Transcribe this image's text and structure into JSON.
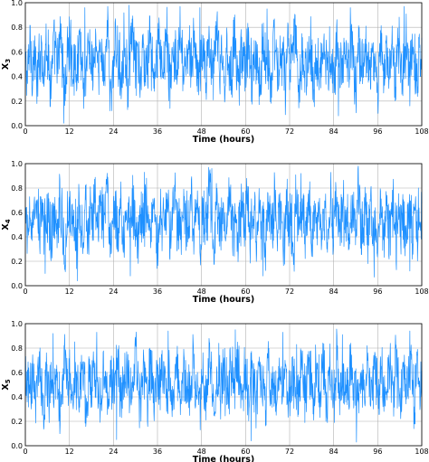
{
  "chart_data": [
    {
      "type": "line",
      "ylabel": "X",
      "ylabel_sub": "3",
      "xlabel": "Time (hours)",
      "xlim": [
        0,
        108
      ],
      "ylim": [
        0,
        1
      ],
      "xticks": [
        0,
        12,
        24,
        36,
        48,
        60,
        72,
        84,
        96,
        108
      ],
      "yticks": [
        "0.0",
        "0.2",
        "0.4",
        "0.6",
        "0.8",
        "1.0"
      ],
      "grid": true,
      "color": "#1e90ff",
      "series": [
        {
          "values": [
            0.52,
            0.38,
            0.71,
            0.45,
            0.6,
            0.29,
            0.55,
            0.66,
            0.41,
            0.73,
            0.48,
            0.35,
            0.62,
            0.57,
            0.44,
            0.8,
            0.5,
            0.27,
            0.59,
            0.68,
            0.46,
            0.53,
            0.39,
            0.74,
            0.58,
            0.31,
            0.49,
            0.63,
            0.55,
            0.42,
            0.7,
            0.36,
            0.61,
            0.47,
            0.54,
            0.82,
            0.44,
            0.3,
            0.57,
            0.65,
            0.5,
            0.4,
            0.69,
            0.52,
            0.34,
            0.6,
            0.72,
            0.45,
            0.56,
            0.28,
            0.63,
            0.51,
            0.43,
            0.77,
            0.48,
            0.37,
            0.58,
            0.66,
            0.53,
            0.41,
            0.85,
            0.47,
            0.32,
            0.6,
            0.55,
            0.44,
            0.71,
            0.5,
            0.38,
            0.64,
            0.57,
            0.42,
            0.79,
            0.49,
            0.33,
            0.62,
            0.56,
            0.45,
            0.68,
            0.52,
            0.36,
            0.59,
            0.73,
            0.46,
            0.54,
            0.3,
            0.65,
            0.51,
            0.4,
            0.76,
            0.48,
            0.35,
            0.61,
            0.57,
            0.43,
            0.7,
            0.53,
            0.39,
            0.63,
            0.49,
            0.27,
            0.58,
            0.67,
            0.45,
            0.55,
            0.34,
            0.72,
            0.5,
            0.42,
            0.62,
            0.56,
            0.31,
            0.69,
            0.47,
            0.53,
            0.81,
            0.44,
            0.37,
            0.6,
            0.52,
            0.41,
            0.66,
            0.58,
            0.29,
            0.64,
            0.5,
            0.46,
            0.75,
            0.54,
            0.36,
            0.59,
            0.48,
            0.43,
            0.7,
            0.55,
            0.32,
            0.63,
            0.51,
            0.4,
            0.78,
            0.47,
            0.35,
            0.61,
            0.57,
            0.44,
            0.67,
            0.53,
            0.38,
            0.62,
            0.49,
            0.28,
            0.6,
            0.71,
            0.45,
            0.56,
            0.33,
            0.68,
            0.52,
            0.41,
            0.74,
            0.48,
            0.37,
            0.65,
            0.55,
            0.43,
            0.58,
            0.5,
            0.3,
            0.63,
            0.54
          ],
          "spikes": [
            [
              0.097,
              0.02
            ],
            [
              0.15,
              0.96
            ],
            [
              0.213,
              0.12
            ],
            [
              0.262,
              0.98
            ],
            [
              0.44,
              0.96
            ],
            [
              0.61,
              0.95
            ],
            [
              0.79,
              0.08
            ],
            [
              0.82,
              0.96
            ],
            [
              0.89,
              0.1
            ],
            [
              0.955,
              0.97
            ]
          ]
        }
      ]
    },
    {
      "type": "line",
      "ylabel": "X",
      "ylabel_sub": "4",
      "xlabel": "Time (hours)",
      "xlim": [
        0,
        108
      ],
      "ylim": [
        0,
        1
      ],
      "xticks": [
        0,
        12,
        24,
        36,
        48,
        60,
        72,
        84,
        96,
        108
      ],
      "yticks": [
        "0.0",
        "0.2",
        "0.4",
        "0.6",
        "0.8",
        "1.0"
      ],
      "grid": true,
      "color": "#1e90ff",
      "series": [
        {
          "values": [
            0.5,
            0.42,
            0.68,
            0.36,
            0.57,
            0.63,
            0.45,
            0.74,
            0.39,
            0.55,
            0.6,
            0.33,
            0.66,
            0.48,
            0.52,
            0.79,
            0.41,
            0.29,
            0.58,
            0.7,
            0.46,
            0.54,
            0.37,
            0.72,
            0.51,
            0.44,
            0.65,
            0.35,
            0.59,
            0.49,
            0.76,
            0.4,
            0.56,
            0.62,
            0.43,
            0.83,
            0.47,
            0.31,
            0.61,
            0.53,
            0.45,
            0.69,
            0.38,
            0.57,
            0.64,
            0.42,
            0.75,
            0.5,
            0.34,
            0.6,
            0.55,
            0.46,
            0.71,
            0.39,
            0.58,
            0.8,
            0.44,
            0.28,
            0.63,
            0.52,
            0.48,
            0.67,
            0.36,
            0.59,
            0.73,
            0.43,
            0.54,
            0.32,
            0.66,
            0.5,
            0.45,
            0.78,
            0.41,
            0.57,
            0.61,
            0.37,
            0.7,
            0.49,
            0.55,
            0.84,
            0.44,
            0.3,
            0.62,
            0.53,
            0.47,
            0.68,
            0.39,
            0.6,
            0.74,
            0.42,
            0.56,
            0.35,
            0.65,
            0.51,
            0.46,
            0.77,
            0.4,
            0.58,
            0.63,
            0.38,
            0.71,
            0.48,
            0.54,
            0.33,
            0.67,
            0.52,
            0.45,
            0.8,
            0.43,
            0.59,
            0.62,
            0.36,
            0.69,
            0.5,
            0.55,
            0.29,
            0.64,
            0.53,
            0.47,
            0.75,
            0.41,
            0.57,
            0.66,
            0.37,
            0.72,
            0.49,
            0.56,
            0.34,
            0.63,
            0.51,
            0.44,
            0.78,
            0.42,
            0.6,
            0.65,
            0.39,
            0.7,
            0.48,
            0.54,
            0.31,
            0.67,
            0.52,
            0.46,
            0.82,
            0.43,
            0.58,
            0.61,
            0.38,
            0.73,
            0.5,
            0.55,
            0.35,
            0.64,
            0.53,
            0.45,
            0.76,
            0.4,
            0.59,
            0.68,
            0.36,
            0.71,
            0.49,
            0.57,
            0.32,
            0.66,
            0.52,
            0.47,
            0.74,
            0.44,
            0.6,
            0.55
          ],
          "spikes": [
            [
              0.05,
              0.1
            ],
            [
              0.132,
              0.04
            ],
            [
              0.265,
              0.08
            ],
            [
              0.3,
              0.93
            ],
            [
              0.47,
              0.96
            ],
            [
              0.6,
              0.08
            ],
            [
              0.695,
              0.92
            ],
            [
              0.84,
              0.98
            ],
            [
              0.88,
              0.07
            ],
            [
              0.97,
              0.12
            ]
          ]
        }
      ]
    },
    {
      "type": "line",
      "ylabel": "X",
      "ylabel_sub": "5",
      "xlabel": "Time (hours)",
      "xlim": [
        0,
        108
      ],
      "ylim": [
        0,
        1
      ],
      "xticks": [
        0,
        12,
        24,
        36,
        48,
        60,
        72,
        84,
        96,
        108
      ],
      "yticks": [
        "0.0",
        "0.2",
        "0.4",
        "0.6",
        "0.8",
        "1.0"
      ],
      "grid": true,
      "color": "#1e90ff",
      "series": [
        {
          "values": [
            0.45,
            0.58,
            0.36,
            0.62,
            0.49,
            0.41,
            0.7,
            0.53,
            0.3,
            0.6,
            0.47,
            0.55,
            0.38,
            0.66,
            0.5,
            0.27,
            0.57,
            0.73,
            0.44,
            0.52,
            0.35,
            0.64,
            0.48,
            0.41,
            0.69,
            0.54,
            0.32,
            0.59,
            0.46,
            0.76,
            0.43,
            0.51,
            0.37,
            0.63,
            0.49,
            0.29,
            0.6,
            0.55,
            0.42,
            0.71,
            0.47,
            0.34,
            0.65,
            0.52,
            0.4,
            0.58,
            0.45,
            0.79,
            0.5,
            0.31,
            0.62,
            0.48,
            0.39,
            0.67,
            0.54,
            0.36,
            0.6,
            0.44,
            0.72,
            0.51,
            0.33,
            0.57,
            0.46,
            0.41,
            0.68,
            0.53,
            0.28,
            0.63,
            0.49,
            0.56,
            0.38,
            0.74,
            0.45,
            0.52,
            0.35,
            0.61,
            0.47,
            0.42,
            0.7,
            0.5,
            0.3,
            0.59,
            0.55,
            0.43,
            0.66,
            0.48,
            0.37,
            0.64,
            0.51,
            0.46,
            0.77,
            0.44,
            0.32,
            0.6,
            0.53,
            0.4,
            0.69,
            0.49,
            0.36,
            0.62,
            0.47,
            0.55,
            0.34,
            0.71,
            0.45,
            0.5,
            0.29,
            0.58,
            0.52,
            0.41,
            0.67,
            0.48,
            0.38,
            0.63,
            0.46,
            0.57,
            0.33,
            0.73,
            0.5,
            0.43,
            0.6,
            0.49,
            0.35,
            0.65,
            0.54,
            0.42,
            0.7,
            0.47,
            0.31,
            0.59,
            0.52,
            0.44,
            0.75,
            0.48,
            0.37,
            0.62,
            0.5,
            0.4,
            0.68,
            0.45,
            0.56,
            0.3,
            0.61,
            0.53,
            0.46,
            0.72,
            0.49,
            0.36,
            0.64,
            0.51,
            0.43,
            0.58,
            0.47,
            0.34,
            0.66,
            0.55,
            0.41,
            0.78,
            0.48,
            0.38,
            0.6,
            0.52,
            0.45,
            0.69,
            0.5,
            0.33,
            0.63,
            0.46,
            0.54
          ],
          "spikes": [
            [
              0.07,
              0.92
            ],
            [
              0.18,
              0.93
            ],
            [
              0.23,
              0.05
            ],
            [
              0.36,
              0.94
            ],
            [
              0.53,
              0.95
            ],
            [
              0.57,
              0.04
            ],
            [
              0.65,
              0.93
            ],
            [
              0.8,
              0.91
            ],
            [
              0.835,
              0.03
            ],
            [
              0.97,
              0.94
            ]
          ]
        }
      ]
    }
  ]
}
